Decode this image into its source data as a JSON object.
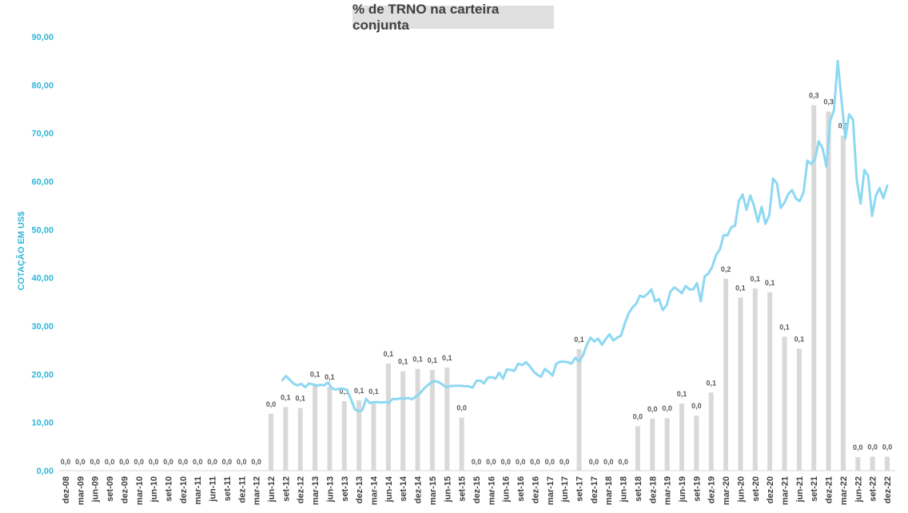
{
  "chart_data": {
    "type": "bar+line",
    "title": "% de TRNO na carteira conjunta",
    "ylabel": "COTAÇÃO EM US$",
    "ylim": [
      0,
      90
    ],
    "yticks": [
      "0,00",
      "10,00",
      "20,00",
      "30,00",
      "40,00",
      "50,00",
      "60,00",
      "70,00",
      "80,00",
      "90,00"
    ],
    "colors": {
      "bars": "#d9d9d9",
      "line": "#8dd8f2",
      "axis_text": "#33b5d8",
      "label_text": "#595959"
    },
    "categories": [
      "dez-08",
      "mar-09",
      "jun-09",
      "set-09",
      "dez-09",
      "mar-10",
      "jun-10",
      "set-10",
      "dez-10",
      "mar-11",
      "jun-11",
      "set-11",
      "dez-11",
      "mar-12",
      "jun-12",
      "set-12",
      "dez-12",
      "mar-13",
      "jun-13",
      "set-13",
      "dez-13",
      "mar-14",
      "jun-14",
      "set-14",
      "dez-14",
      "mar-15",
      "jun-15",
      "set-15",
      "dez-15",
      "mar-16",
      "jun-16",
      "set-16",
      "dez-16",
      "mar-17",
      "jun-17",
      "set-17",
      "dez-17",
      "mar-18",
      "jun-18",
      "set-18",
      "dez-18",
      "mar-19",
      "jun-19",
      "set-19",
      "dez-19",
      "mar-20",
      "jun-20",
      "set-20",
      "dez-20",
      "mar-21",
      "jun-21",
      "set-21",
      "dez-21",
      "mar-22",
      "jun-22",
      "set-22",
      "dez-22"
    ],
    "bar_series": {
      "name": "% de TRNO na carteira conjunta",
      "values": [
        0,
        0,
        0,
        0,
        0,
        0,
        0,
        0,
        0,
        0,
        0,
        0,
        0,
        0,
        11.8,
        13.2,
        13.0,
        18.0,
        17.4,
        14.4,
        14.6,
        14.4,
        22.2,
        20.6,
        21.1,
        20.9,
        21.4,
        11.0,
        0,
        0,
        0,
        0,
        0,
        0,
        0,
        25.2,
        0,
        0,
        0,
        9.2,
        10.8,
        10.9,
        13.9,
        11.4,
        16.2,
        39.8,
        35.9,
        37.8,
        37.0,
        27.8,
        25.3,
        75.8,
        74.5,
        69.5,
        2.8,
        2.9,
        2.9
      ],
      "labels": [
        "0,0",
        "0,0",
        "0,0",
        "0,0",
        "0,0",
        "0,0",
        "0,0",
        "0,0",
        "0,0",
        "0,0",
        "0,0",
        "0,0",
        "0,0",
        "0,0",
        "0,0",
        "0,1",
        "0,1",
        "0,1",
        "0,1",
        "0,1",
        "0,1",
        "0,1",
        "0,1",
        "0,1",
        "0,1",
        "0,1",
        "0,1",
        "0,0",
        "0,0",
        "0,0",
        "0,0",
        "0,0",
        "0,0",
        "0,0",
        "0,0",
        "0,1",
        "0,0",
        "0,0",
        "0,0",
        "0,0",
        "0,0",
        "0,0",
        "0,1",
        "0,0",
        "0,1",
        "0,2",
        "0,1",
        "0,1",
        "0,1",
        "0,1",
        "0,1",
        "0,3",
        "0,3",
        "0,3",
        "0,0",
        "0,0",
        "0,0"
      ]
    },
    "line_series": {
      "name": "Cotação em US$",
      "values": [
        null,
        null,
        null,
        null,
        null,
        null,
        null,
        null,
        null,
        null,
        null,
        null,
        null,
        null,
        null,
        null,
        null,
        null,
        null,
        null,
        null,
        null,
        null,
        null,
        null,
        null,
        null,
        null,
        null,
        null,
        null,
        null,
        null,
        null,
        null,
        null,
        null,
        null,
        null,
        null,
        null,
        null,
        null,
        null,
        null,
        null,
        null,
        null,
        null,
        null,
        null,
        null,
        null,
        null,
        null,
        null,
        null,
        18.8,
        19.6,
        18.8,
        18.0,
        17.7,
        18.0,
        17.3,
        18.1,
        17.9,
        17.6,
        17.8,
        17.7,
        18.3,
        17.1,
        16.8,
        17.0,
        17.0,
        16.7,
        14.9,
        12.8,
        12.3,
        12.5,
        14.9,
        14.0,
        14.2,
        14.2,
        14.1,
        14.2,
        14.1,
        14.9,
        14.8,
        15.0,
        14.9,
        15.1,
        14.8,
        15.3,
        15.9,
        16.8,
        17.6,
        18.2,
        18.6,
        18.4,
        17.9,
        17.3,
        17.5,
        17.6,
        17.6,
        17.6,
        17.5,
        17.5,
        17.2,
        18.6,
        18.7,
        18.1,
        19.3,
        19.4,
        19.1,
        20.3,
        19.1,
        21.0,
        20.9,
        20.7,
        22.2,
        21.9,
        22.5,
        21.7,
        20.6,
        19.9,
        19.5,
        21.1,
        20.5,
        19.7,
        22.2,
        22.6,
        22.6,
        22.5,
        22.2,
        23.4,
        22.6,
        23.9,
        26.0,
        27.6,
        26.8,
        27.4,
        26.1,
        27.3,
        28.3,
        27.0,
        27.6,
        28.0,
        30.5,
        32.6,
        33.8,
        34.6,
        36.3,
        36.0,
        36.7,
        37.6,
        35.1,
        35.6,
        33.3,
        34.3,
        37.1,
        38.0,
        37.5,
        36.8,
        38.3,
        37.6,
        37.6,
        38.9,
        35.1,
        40.3,
        40.9,
        42.3,
        44.7,
        45.9,
        48.9,
        48.8,
        50.5,
        50.8,
        55.9,
        57.3,
        54.1,
        57.1,
        54.9,
        51.6,
        54.7,
        51.2,
        53.0,
        60.6,
        59.6,
        54.5,
        55.6,
        57.4,
        58.2,
        56.4,
        55.9,
        57.7,
        64.3,
        63.6,
        64.6,
        68.3,
        66.9,
        63.1,
        72.5,
        74.8,
        85.0,
        76.7,
        68.9,
        73.9,
        72.8,
        60.3,
        55.4,
        62.4,
        61.1,
        52.8,
        57.0,
        58.6,
        56.5,
        59.1
      ]
    }
  }
}
